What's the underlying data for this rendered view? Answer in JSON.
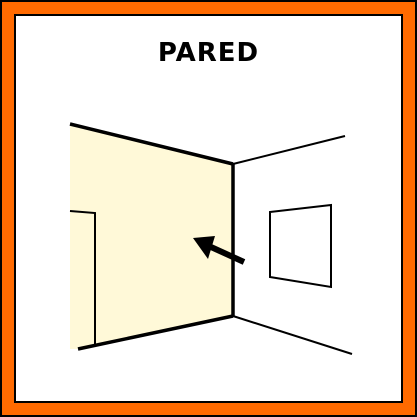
{
  "card": {
    "title": "PARED"
  },
  "colors": {
    "frame": "#FF6A00",
    "wall_highlight": "#FFF9D8",
    "line": "#000000",
    "background": "#FFFFFF"
  },
  "illustration": {
    "subject": "wall",
    "highlighted_element": "left-wall",
    "pointer_icon": "arrow-icon"
  }
}
